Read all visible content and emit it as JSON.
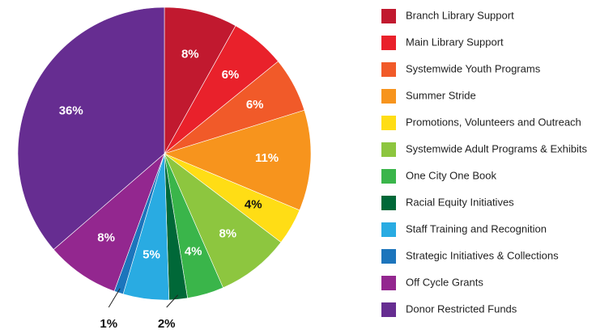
{
  "chart_data": {
    "type": "pie",
    "categories": [
      "Branch Library Support",
      "Main Library Support",
      "Systemwide Youth Programs",
      "Summer Stride",
      "Promotions, Volunteers and Outreach",
      "Systemwide Adult Programs & Exhibits",
      "One City One Book",
      "Racial Equity Initiatives",
      "Staff Training and Recognition",
      "Strategic Initiatives & Collections",
      "Off Cycle Grants",
      "Donor Restricted Funds"
    ],
    "values": [
      8,
      6,
      6,
      11,
      4,
      8,
      4,
      2,
      5,
      1,
      8,
      36
    ],
    "value_labels": [
      "8%",
      "6%",
      "6%",
      "11%",
      "4%",
      "8%",
      "4%",
      "2%",
      "5%",
      "1%",
      "8%",
      "36%"
    ],
    "colors": [
      "#c1192f",
      "#e9212b",
      "#f15a29",
      "#f7941d",
      "#ffdd15",
      "#8dc63f",
      "#3ab54a",
      "#006838",
      "#29abe2",
      "#1c75bc",
      "#93278f",
      "#662d91"
    ]
  }
}
